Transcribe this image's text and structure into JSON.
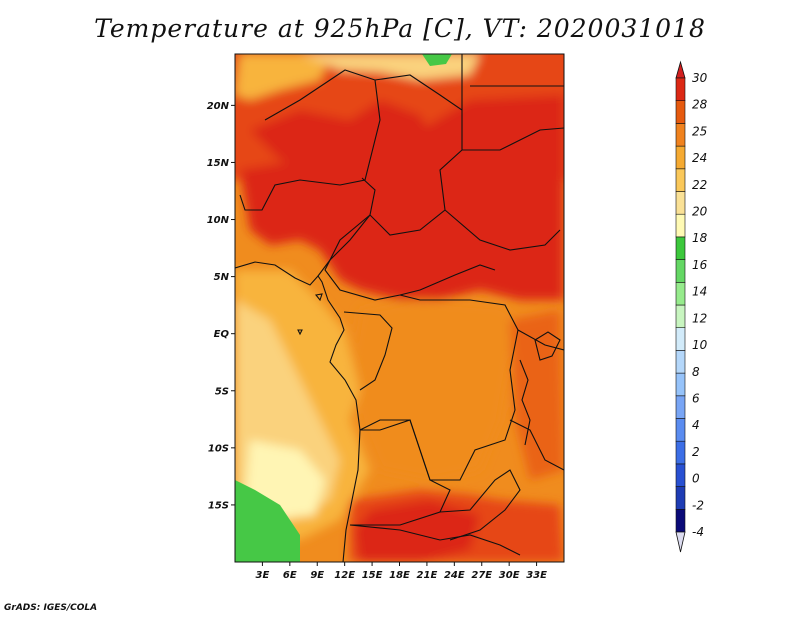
{
  "title": "Temperature at 925hPa [C], VT: 2020031018",
  "credit": "GrADS: IGES/COLA",
  "map": {
    "lon_range": [
      0,
      36
    ],
    "lat_range": [
      -20,
      24.5
    ],
    "lat_ticks": [
      {
        "value": 20,
        "label": "20N"
      },
      {
        "value": 15,
        "label": "15N"
      },
      {
        "value": 10,
        "label": "10N"
      },
      {
        "value": 5,
        "label": "5N"
      },
      {
        "value": 0,
        "label": "EQ"
      },
      {
        "value": -5,
        "label": "5S"
      },
      {
        "value": -10,
        "label": "10S"
      },
      {
        "value": -15,
        "label": "15S"
      }
    ],
    "lon_ticks": [
      {
        "value": 3,
        "label": "3E"
      },
      {
        "value": 6,
        "label": "6E"
      },
      {
        "value": 9,
        "label": "9E"
      },
      {
        "value": 12,
        "label": "12E"
      },
      {
        "value": 15,
        "label": "15E"
      },
      {
        "value": 18,
        "label": "18E"
      },
      {
        "value": 21,
        "label": "21E"
      },
      {
        "value": 24,
        "label": "24E"
      },
      {
        "value": 27,
        "label": "27E"
      },
      {
        "value": 30,
        "label": "30E"
      },
      {
        "value": 33,
        "label": "33E"
      }
    ]
  },
  "colorbar": {
    "bins": [
      {
        "color": "#0a0a78",
        "label": "-4"
      },
      {
        "color": "#1e3cb4",
        "label": "-2"
      },
      {
        "color": "#2850d2",
        "label": "0"
      },
      {
        "color": "#3c6ee6",
        "label": "2"
      },
      {
        "color": "#5a8cf0",
        "label": "4"
      },
      {
        "color": "#78a5f5",
        "label": "6"
      },
      {
        "color": "#96c3fa",
        "label": "8"
      },
      {
        "color": "#b4d7fa",
        "label": "10"
      },
      {
        "color": "#d2ebfa",
        "label": "12"
      },
      {
        "color": "#c8f5c0",
        "label": "14"
      },
      {
        "color": "#96eb8c",
        "label": "16"
      },
      {
        "color": "#64d764",
        "label": "18"
      },
      {
        "color": "#3cc83c",
        "label": ""
      },
      {
        "color": "#fffab4",
        "label": "20"
      },
      {
        "color": "#fae196",
        "label": "22"
      },
      {
        "color": "#fac85a",
        "label": "24"
      },
      {
        "color": "#f5aa32",
        "label": "25"
      },
      {
        "color": "#f0821e",
        "label": "28"
      },
      {
        "color": "#e65a0f",
        "label": "30"
      },
      {
        "color": "#dc2814",
        "label": ""
      }
    ],
    "over_color": "#d21e1e",
    "under_color": "#dcdcf0"
  },
  "colors": {
    "c_green": "#46c846",
    "c_pale_yellow": "#fff5b4",
    "c_light_orange": "#fad27d",
    "c_gold": "#f8b43c",
    "c_orange": "#f08c1e",
    "c_dark_orange": "#ea6414",
    "c_red_orange": "#e64614",
    "c_red": "#dc2814"
  }
}
